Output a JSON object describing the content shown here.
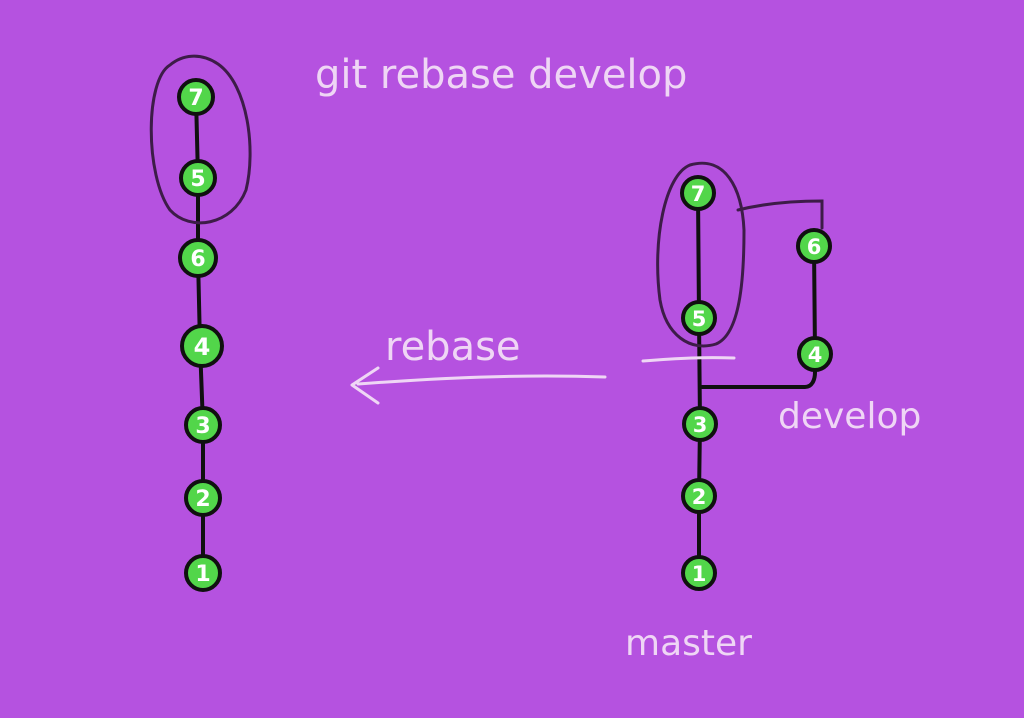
{
  "colors": {
    "background": "#b552e0",
    "node_fill": "#52d64a",
    "node_stroke": "#101010",
    "edge": "#101010",
    "ink_light": "#efd6f5",
    "ink_dark": "#3d1c48"
  },
  "title": "git rebase develop",
  "arrow_label": "rebase",
  "branch_labels": {
    "develop": "develop",
    "master": "master"
  },
  "left_graph": {
    "description_order": "top-to-bottom",
    "commits": [
      "7",
      "5",
      "6",
      "4",
      "3",
      "2",
      "1"
    ],
    "circled": [
      "7",
      "5"
    ]
  },
  "right_graph": {
    "master_commits": [
      "7",
      "5",
      "3",
      "2",
      "1"
    ],
    "develop_commits": [
      "6",
      "4"
    ],
    "circled": [
      "7",
      "5"
    ]
  }
}
